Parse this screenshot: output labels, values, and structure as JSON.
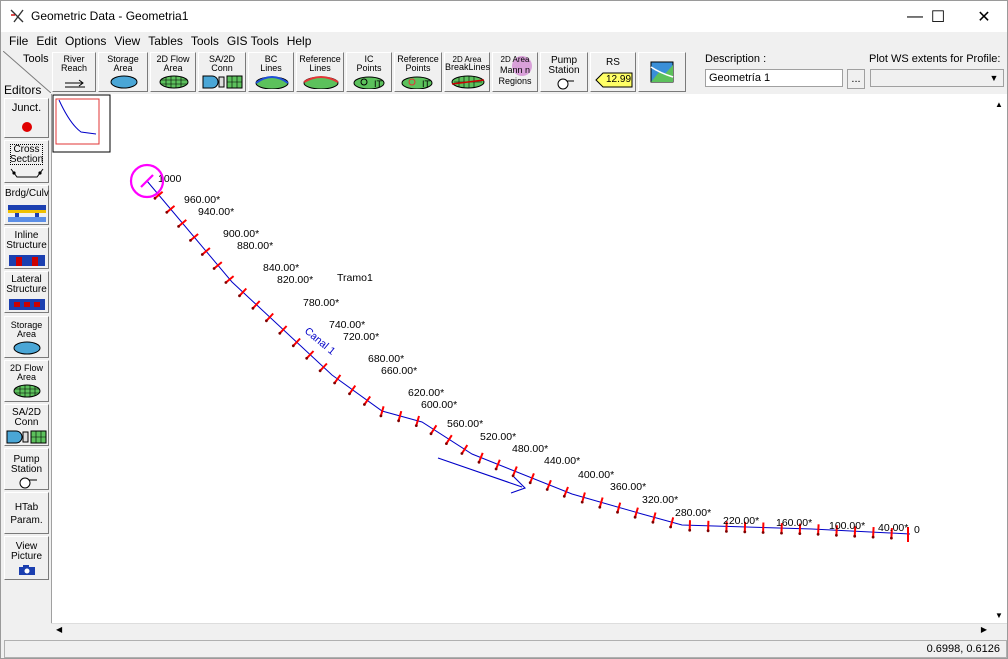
{
  "window": {
    "title": "Geometric Data - Geometria1",
    "minimize": "—",
    "maximize": "☐",
    "close": "✕"
  },
  "menu": [
    "File",
    "Edit",
    "Options",
    "View",
    "Tables",
    "Tools",
    "GIS Tools",
    "Help"
  ],
  "toolbar": {
    "tools_label": "Tools",
    "buttons": [
      {
        "name": "river-reach",
        "lines": [
          "River",
          "Reach"
        ]
      },
      {
        "name": "storage-area",
        "lines": [
          "Storage",
          "Area"
        ]
      },
      {
        "name": "2d-flow-area",
        "lines": [
          "2D Flow",
          "Area"
        ]
      },
      {
        "name": "sa-2d-conn",
        "lines": [
          "SA/2D",
          "Conn"
        ]
      },
      {
        "name": "bc-lines",
        "lines": [
          "BC",
          "Lines"
        ]
      },
      {
        "name": "reference-lines",
        "lines": [
          "Reference",
          "Lines"
        ]
      },
      {
        "name": "ic-points",
        "lines": [
          "IC",
          "Points"
        ]
      },
      {
        "name": "reference-points",
        "lines": [
          "Reference",
          "Points"
        ]
      },
      {
        "name": "2d-area-breaklines",
        "lines": [
          "2D Area",
          "BreakLines"
        ]
      },
      {
        "name": "2d-area-mannings",
        "lines": [
          "2D Area",
          "Mann n",
          "Regions"
        ]
      },
      {
        "name": "pump-station",
        "lines": [
          "Pump",
          "Station"
        ]
      },
      {
        "name": "rs",
        "lines": [
          "RS"
        ]
      },
      {
        "name": "map-layers",
        "lines": []
      }
    ],
    "rs_badge": "12.99",
    "description_label": "Description :",
    "description_value": "Geometría 1",
    "description_dots": "...",
    "plot_ws_label": "Plot WS extents for Profile:",
    "plot_ws_value": ""
  },
  "editors": {
    "label": "Editors",
    "items": [
      {
        "name": "junction",
        "lines": [
          "Junct."
        ]
      },
      {
        "name": "cross-section",
        "lines": [
          "Cross",
          "Section"
        ]
      },
      {
        "name": "bridge-culvert",
        "lines": [
          "Brdg/Culv"
        ]
      },
      {
        "name": "inline-structure",
        "lines": [
          "Inline",
          "Structure"
        ]
      },
      {
        "name": "lateral-structure",
        "lines": [
          "Lateral",
          "Structure"
        ]
      },
      {
        "name": "storage-area",
        "lines": [
          "Storage",
          "Area"
        ]
      },
      {
        "name": "2d-flow-area",
        "lines": [
          "2D Flow",
          "Area"
        ]
      },
      {
        "name": "sa-2d-conn",
        "lines": [
          "SA/2D",
          "Conn"
        ]
      },
      {
        "name": "pump-station",
        "lines": [
          "Pump",
          "Station"
        ]
      },
      {
        "name": "htab-param",
        "lines": [
          "HTab",
          "Param."
        ]
      },
      {
        "name": "view-picture",
        "lines": [
          "View",
          "Picture"
        ]
      }
    ]
  },
  "schematic": {
    "river_label": "Canal 1",
    "reach_label": "Tramo1",
    "cross_sections": [
      "1000",
      "960.00*",
      "940.00*",
      "900.00*",
      "880.00*",
      "840.00*",
      "820.00*",
      "780.00*",
      "740.00*",
      "720.00*",
      "680.00*",
      "660.00*",
      "620.00*",
      "600.00*",
      "560.00*",
      "520.00*",
      "480.00*",
      "440.00*",
      "400.00*",
      "360.00*",
      "320.00*",
      "280.00*",
      "220.00*",
      "160.00*",
      "100.00*",
      "40.00*",
      "0"
    ],
    "colors": {
      "reach": "#0000c8",
      "xs": "#ff0000",
      "xs_cap": "#800000",
      "selected": "#ff00ff"
    }
  },
  "status": {
    "coordinates": "0.6998, 0.6126"
  }
}
